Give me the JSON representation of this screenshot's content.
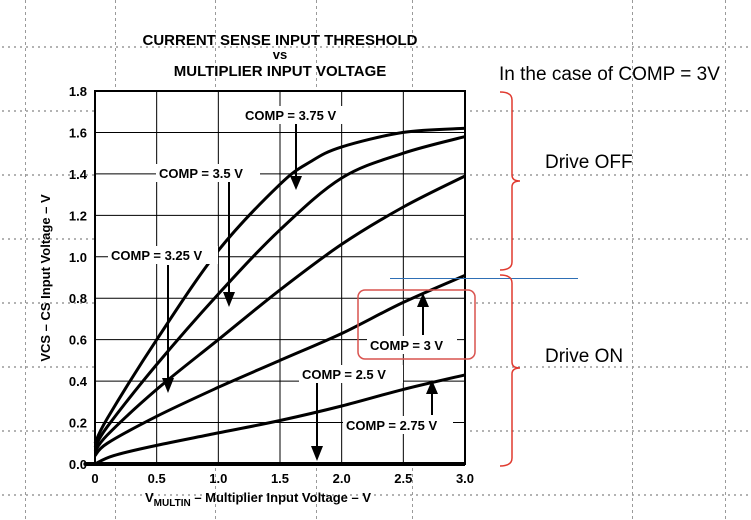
{
  "chart_data": {
    "type": "line",
    "title": "CURRENT SENSE INPUT THRESHOLD",
    "title_line2": "vs",
    "title_line3": "MULTIPLIER INPUT VOLTAGE",
    "xlabel_main": "V",
    "xlabel_sub": "MULTIN",
    "xlabel_rest": " – Multiplier Input Voltage – V",
    "ylabel": "VCS – CS Input Voltage – V",
    "xlim": [
      0,
      3.0
    ],
    "ylim": [
      0,
      1.8
    ],
    "x_ticks": [
      "0",
      "0.5",
      "1.0",
      "1.5",
      "2.0",
      "2.5",
      "3.0"
    ],
    "y_ticks": [
      "0.0",
      "0.2",
      "0.4",
      "0.6",
      "0.8",
      "1.0",
      "1.2",
      "1.4",
      "1.6",
      "1.8"
    ],
    "grid": true,
    "series": [
      {
        "name": "COMP = 2.5 V",
        "x": [
          0,
          0.2,
          3.0
        ],
        "y": [
          0,
          0,
          0
        ]
      },
      {
        "name": "COMP = 2.75 V",
        "x": [
          0,
          0.15,
          0.5,
          1.0,
          1.5,
          2.0,
          2.5,
          3.0
        ],
        "y": [
          0,
          0.04,
          0.09,
          0.15,
          0.21,
          0.28,
          0.36,
          0.43
        ]
      },
      {
        "name": "COMP = 3 V",
        "x": [
          0,
          0.1,
          0.5,
          1.0,
          1.5,
          2.0,
          2.5,
          3.0
        ],
        "y": [
          0.04,
          0.1,
          0.23,
          0.37,
          0.5,
          0.63,
          0.78,
          0.91
        ]
      },
      {
        "name": "COMP = 3.25 V",
        "x": [
          0,
          0.1,
          0.5,
          1.0,
          1.5,
          2.0,
          2.5,
          3.0
        ],
        "y": [
          0.06,
          0.14,
          0.36,
          0.6,
          0.84,
          1.06,
          1.24,
          1.39
        ]
      },
      {
        "name": "COMP = 3.5 V",
        "x": [
          0,
          0.1,
          0.5,
          1.0,
          1.5,
          2.0,
          2.5,
          3.0
        ],
        "y": [
          0.08,
          0.18,
          0.48,
          0.82,
          1.13,
          1.38,
          1.5,
          1.58
        ]
      },
      {
        "name": "COMP = 3.75 V",
        "x": [
          0,
          0.1,
          0.5,
          1.0,
          1.5,
          1.75,
          2.0,
          2.5,
          3.0
        ],
        "y": [
          0.1,
          0.22,
          0.6,
          1.03,
          1.35,
          1.46,
          1.53,
          1.6,
          1.62
        ]
      }
    ],
    "curve_labels": {
      "c375": "COMP = 3.75 V",
      "c35": "COMP = 3.5 V",
      "c325": "COMP = 3.25 V",
      "c3": "COMP = 3 V",
      "c25": "COMP = 2.5 V",
      "c275": "COMP = 2.75 V"
    }
  },
  "annotations": {
    "case_note": "In the case of COMP = 3V",
    "drive_off": "Drive OFF",
    "drive_on": "Drive ON",
    "threshold_y": 0.9,
    "highlight_color": "#d9534f",
    "bracket_color": "#e03a2f",
    "line_color": "#2e6fb5"
  }
}
